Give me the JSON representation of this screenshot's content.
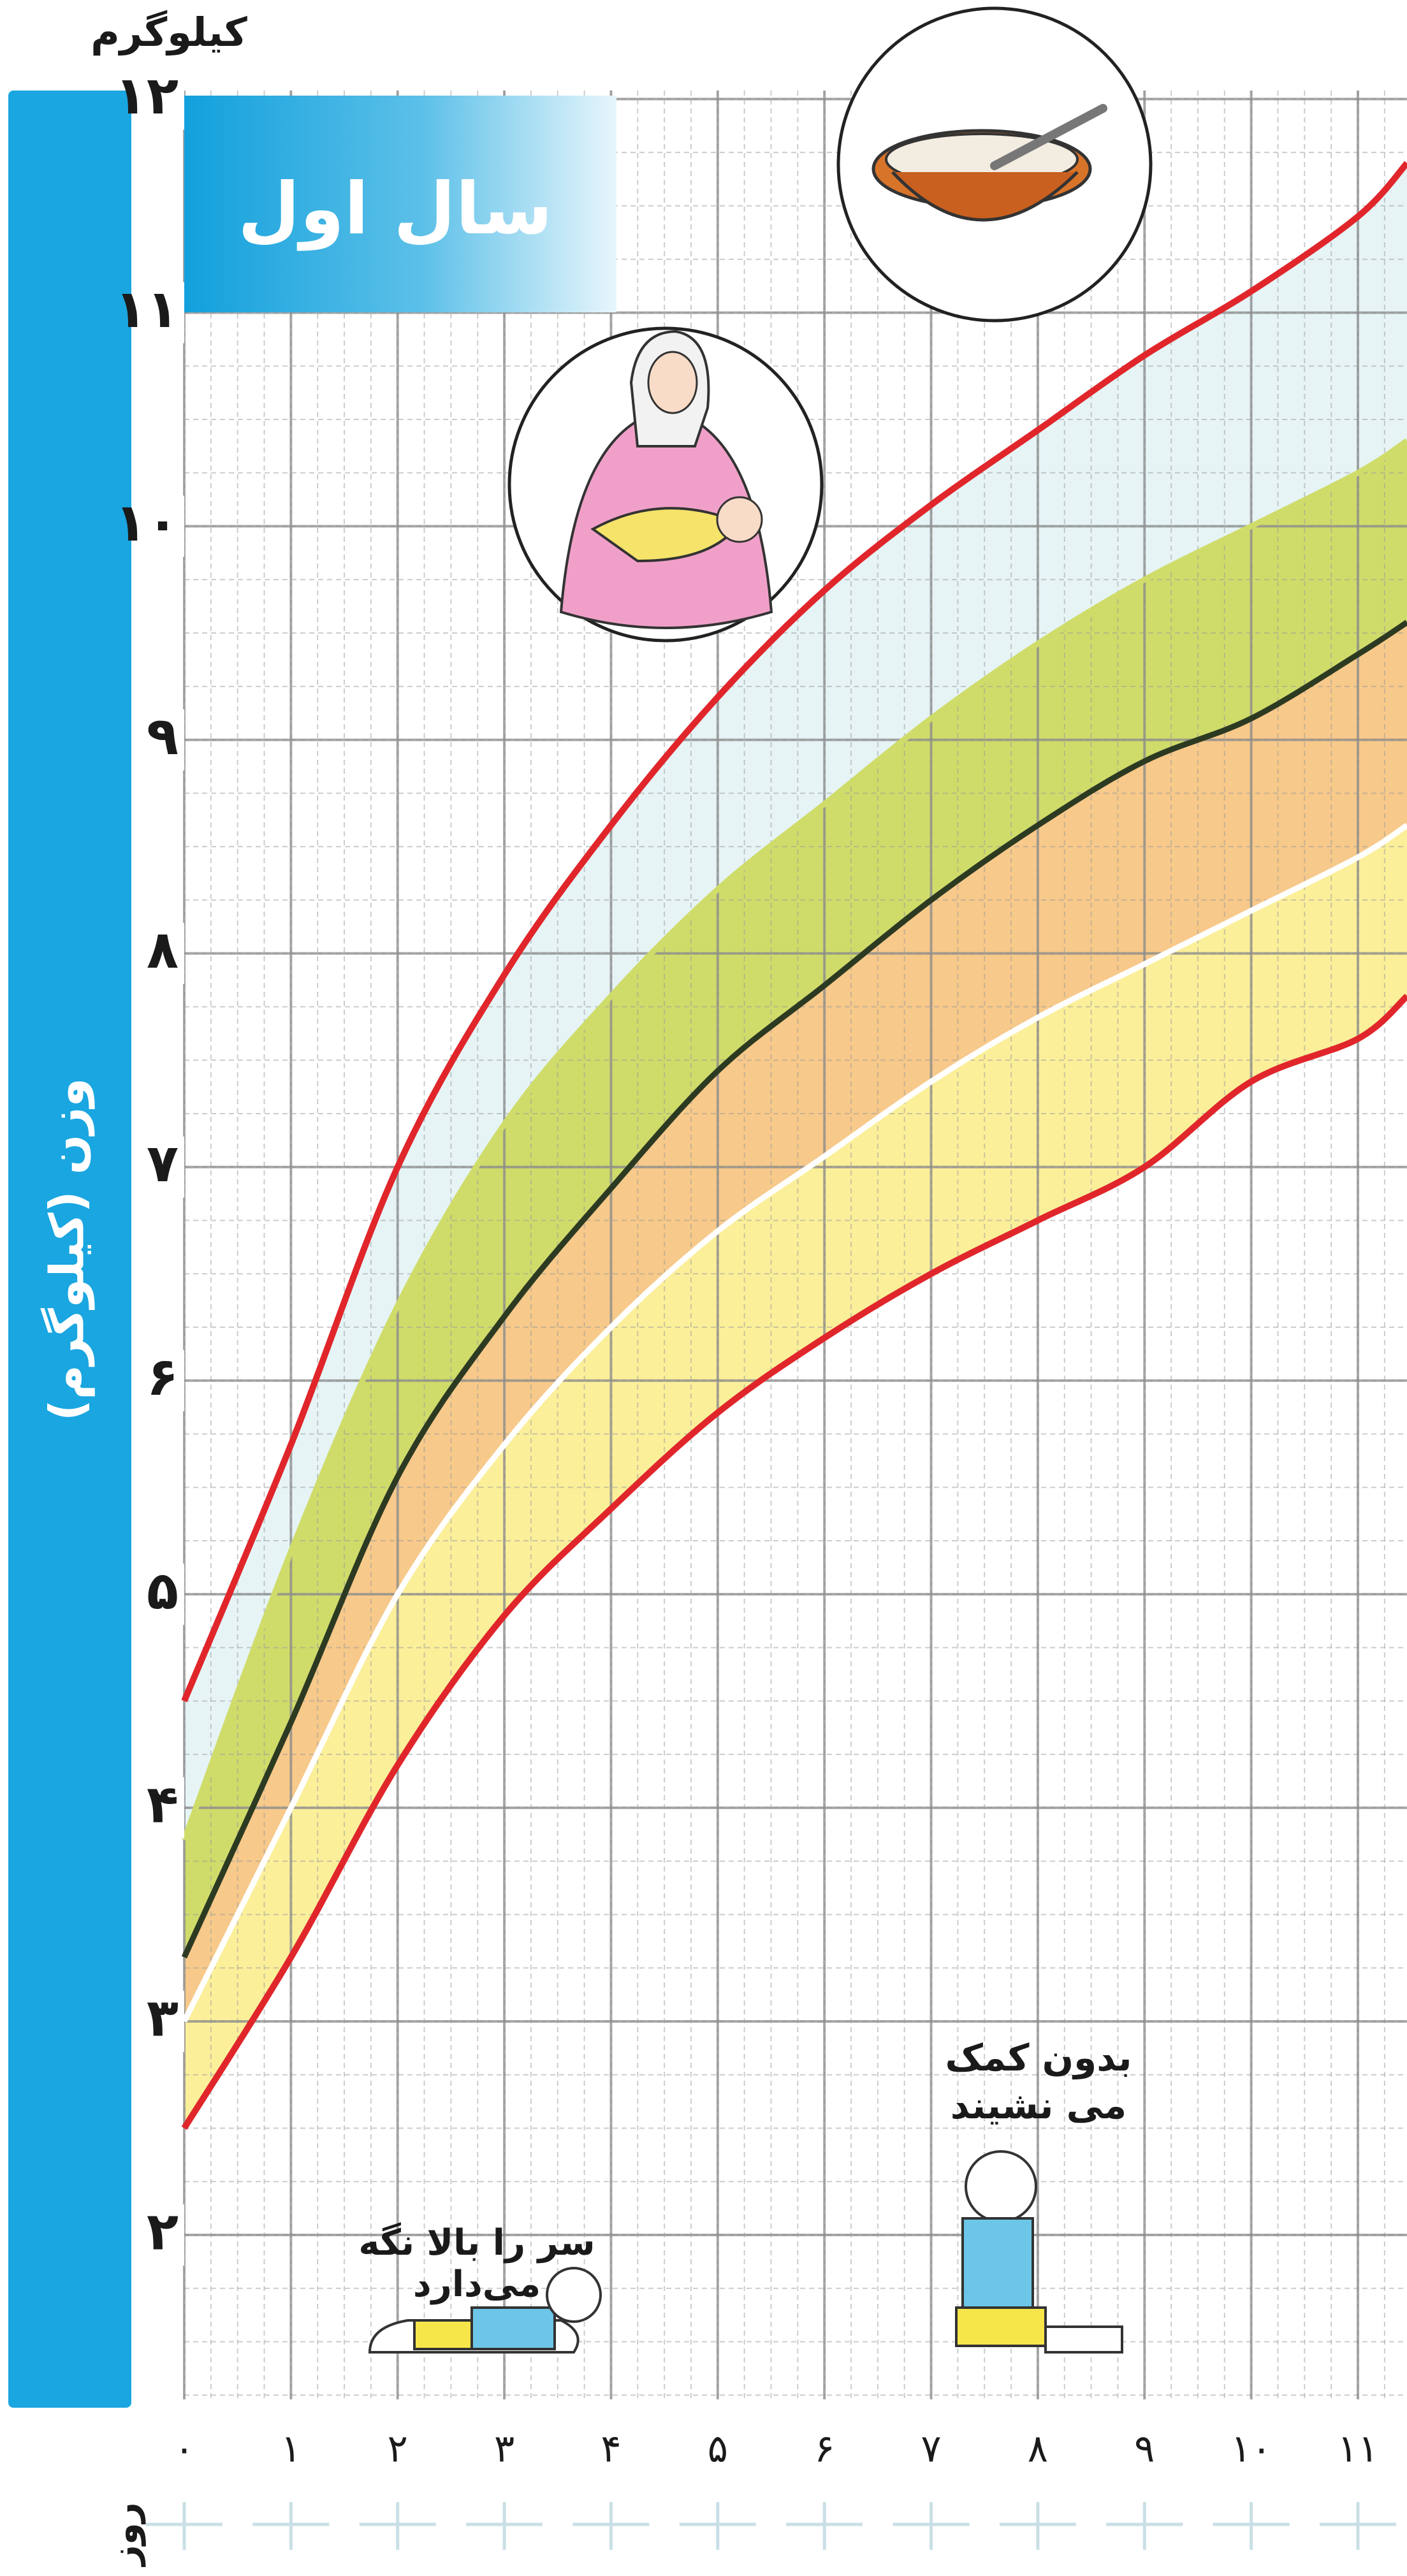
{
  "chart_data": {
    "type": "line",
    "title": "سال اول",
    "y_unit": "کیلوگرم",
    "y_label": "وزن (کیلوگرم)",
    "x_label": "روز",
    "x": [
      0,
      1,
      2,
      3,
      4,
      5,
      6,
      7,
      8,
      9,
      10,
      11,
      11.46
    ],
    "series": [
      {
        "color": "#e0262b",
        "fill": "#e6f4f6",
        "values": [
          4.5,
          5.7,
          7.0,
          7.9,
          8.6,
          9.2,
          9.7,
          10.1,
          10.45,
          10.8,
          11.1,
          11.45,
          11.7
        ]
      },
      {
        "color": "#cfdc6a",
        "fill": "#cfdc6a",
        "values": [
          3.85,
          5.2,
          6.35,
          7.2,
          7.8,
          8.3,
          8.7,
          9.1,
          9.45,
          9.75,
          10.0,
          10.25,
          10.4
        ]
      },
      {
        "color": "#2d3a22",
        "fill": "#f7c98a",
        "values": [
          3.3,
          4.4,
          5.55,
          6.3,
          6.9,
          7.45,
          7.85,
          8.25,
          8.6,
          8.9,
          9.1,
          9.4,
          9.55
        ]
      },
      {
        "color": "#ffffff",
        "fill": "#fbef9a",
        "values": [
          3.0,
          4.0,
          5.0,
          5.7,
          6.25,
          6.7,
          7.05,
          7.4,
          7.7,
          7.95,
          8.2,
          8.45,
          8.6
        ]
      },
      {
        "color": "#e0262b",
        "values": [
          2.5,
          3.3,
          4.2,
          4.9,
          5.4,
          5.85,
          6.2,
          6.5,
          6.75,
          7.0,
          7.4,
          7.6,
          7.8
        ]
      }
    ],
    "xlim": [
      0,
      11.46
    ],
    "ylim": [
      1.23,
      12.04
    ],
    "xticks": [
      {
        "value": 0,
        "label": "۰"
      },
      {
        "value": 1,
        "label": "۱"
      },
      {
        "value": 2,
        "label": "۲"
      },
      {
        "value": 3,
        "label": "۳"
      },
      {
        "value": 4,
        "label": "۴"
      },
      {
        "value": 5,
        "label": "۵"
      },
      {
        "value": 6,
        "label": "۶"
      },
      {
        "value": 7,
        "label": "۷"
      },
      {
        "value": 8,
        "label": "۸"
      },
      {
        "value": 9,
        "label": "۹"
      },
      {
        "value": 10,
        "label": "۱۰"
      },
      {
        "value": 11,
        "label": "۱۱"
      }
    ],
    "yticks": [
      {
        "value": 2,
        "label": "۲"
      },
      {
        "value": 3,
        "label": "۳"
      },
      {
        "value": 4,
        "label": "۴"
      },
      {
        "value": 5,
        "label": "۵"
      },
      {
        "value": 6,
        "label": "۶"
      },
      {
        "value": 7,
        "label": "۷"
      },
      {
        "value": 8,
        "label": "۸"
      },
      {
        "value": 9,
        "label": "۹"
      },
      {
        "value": 10,
        "label": "۱۰"
      },
      {
        "value": 11,
        "label": "۱۱"
      },
      {
        "value": 12,
        "label": "۱۲"
      }
    ],
    "grid": true,
    "annotations": [
      {
        "lines": [
          "سر را بالا نگه",
          "می‌دارد"
        ]
      },
      {
        "lines": [
          "بدون کمک",
          "می نشیند"
        ]
      }
    ]
  }
}
